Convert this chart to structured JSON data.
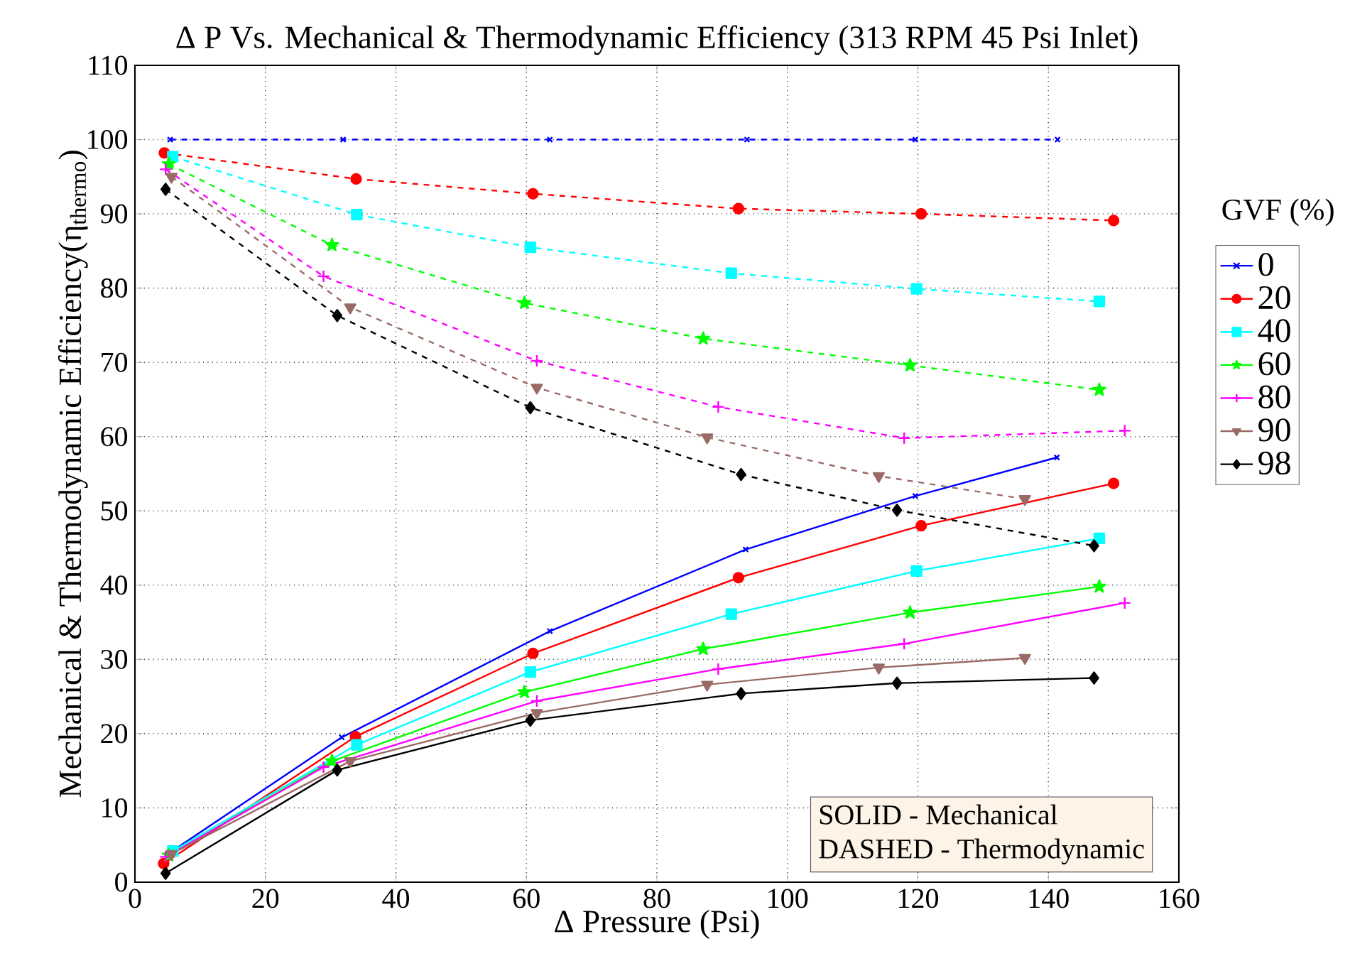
{
  "chart_data": {
    "type": "line",
    "title": "Δ P Vs. Mechanical & Thermodynamic Efficiency (313 RPM 45 Psi Inlet)",
    "xlabel": "Δ Pressure (Psi)",
    "ylabel": "Mechanical & Thermodynamic Efficiency(η$_{thermo}$)",
    "legend_title": "GVF (%)",
    "legend": "right",
    "grid": true,
    "xlim": [
      0,
      160
    ],
    "xticks": [
      0,
      20,
      40,
      60,
      80,
      100,
      120,
      140,
      160
    ],
    "ylim": [
      0,
      110
    ],
    "yticks": [
      0,
      10,
      20,
      30,
      40,
      50,
      60,
      70,
      80,
      90,
      100,
      110
    ],
    "annotations": [
      "SOLID     -   Mechanical",
      "DASHED -  Thermodynamic"
    ],
    "series": [
      {
        "name": "0",
        "color": "#0000ff",
        "marker": "cross",
        "line_style": "solid",
        "x": [
          5.4,
          31.7,
          63.6,
          93.6,
          119.6,
          141.3
        ],
        "values": [
          4.0,
          19.5,
          33.8,
          44.8,
          52.0,
          57.2
        ]
      },
      {
        "name": "20",
        "color": "#ff0000",
        "marker": "circle",
        "line_style": "solid",
        "x": [
          4.4,
          33.8,
          61.0,
          92.5,
          120.5,
          150.0
        ],
        "values": [
          2.5,
          19.6,
          30.8,
          41.0,
          48.0,
          53.7
        ]
      },
      {
        "name": "40",
        "color": "#00ffff",
        "marker": "square",
        "line_style": "solid",
        "x": [
          5.8,
          34.0,
          60.6,
          91.4,
          119.8,
          147.8
        ],
        "values": [
          4.2,
          18.5,
          28.3,
          36.1,
          41.9,
          46.3
        ]
      },
      {
        "name": "60",
        "color": "#00ff00",
        "marker": "star",
        "line_style": "solid",
        "x": [
          5.2,
          30.2,
          59.7,
          87.1,
          118.8,
          147.8
        ],
        "values": [
          3.6,
          16.3,
          25.6,
          31.4,
          36.3,
          39.8
        ]
      },
      {
        "name": "80",
        "color": "#ff00ff",
        "marker": "plus",
        "line_style": "solid",
        "x": [
          4.7,
          28.9,
          61.6,
          89.4,
          117.9,
          151.7
        ],
        "values": [
          3.4,
          15.5,
          24.4,
          28.7,
          32.1,
          37.6
        ]
      },
      {
        "name": "90",
        "color": "#9a6b66",
        "marker": "triangle",
        "line_style": "solid",
        "x": [
          5.6,
          33.0,
          61.6,
          87.7,
          114.0,
          136.4
        ],
        "values": [
          3.8,
          16.3,
          22.8,
          26.6,
          28.9,
          30.2
        ]
      },
      {
        "name": "98",
        "color": "#000000",
        "marker": "diamond",
        "line_style": "solid",
        "x": [
          4.7,
          31.0,
          60.6,
          92.9,
          116.8,
          147.0
        ],
        "values": [
          1.2,
          15.1,
          21.8,
          25.4,
          26.8,
          27.5
        ]
      },
      {
        "color": "#0000ff",
        "marker": "cross",
        "line_style": "dashed",
        "x": [
          5.4,
          31.9,
          63.6,
          93.8,
          119.6,
          141.4
        ],
        "values": [
          100,
          100,
          100,
          100,
          100,
          100
        ]
      },
      {
        "color": "#ff0000",
        "marker": "circle",
        "line_style": "dashed",
        "x": [
          4.5,
          33.9,
          61.0,
          92.5,
          120.5,
          150.0
        ],
        "values": [
          98.2,
          94.7,
          92.7,
          90.7,
          90.0,
          89.1
        ]
      },
      {
        "color": "#00ffff",
        "marker": "square",
        "line_style": "dashed",
        "x": [
          5.8,
          34.0,
          60.6,
          91.4,
          119.8,
          147.8
        ],
        "values": [
          97.7,
          89.9,
          85.5,
          82.0,
          79.9,
          78.2
        ]
      },
      {
        "color": "#00ff00",
        "marker": "star",
        "line_style": "dashed",
        "x": [
          5.2,
          30.2,
          59.7,
          87.1,
          118.8,
          147.8
        ],
        "values": [
          96.7,
          85.8,
          78.0,
          73.2,
          69.6,
          66.3
        ]
      },
      {
        "color": "#ff00ff",
        "marker": "plus",
        "line_style": "dashed",
        "x": [
          4.7,
          28.9,
          61.6,
          89.4,
          117.9,
          151.7
        ],
        "values": [
          96.0,
          81.6,
          70.2,
          64.0,
          59.8,
          60.8
        ]
      },
      {
        "color": "#9a6b66",
        "marker": "triangle",
        "line_style": "dashed",
        "x": [
          5.6,
          33.0,
          61.6,
          87.7,
          114.0,
          136.4
        ],
        "values": [
          95.0,
          77.4,
          66.6,
          59.9,
          54.7,
          51.6
        ]
      },
      {
        "color": "#000000",
        "marker": "diamond",
        "line_style": "dashed",
        "x": [
          4.7,
          31.0,
          60.6,
          92.9,
          116.8,
          147.0
        ],
        "values": [
          93.3,
          76.3,
          63.9,
          54.9,
          50.1,
          45.3
        ]
      }
    ]
  }
}
